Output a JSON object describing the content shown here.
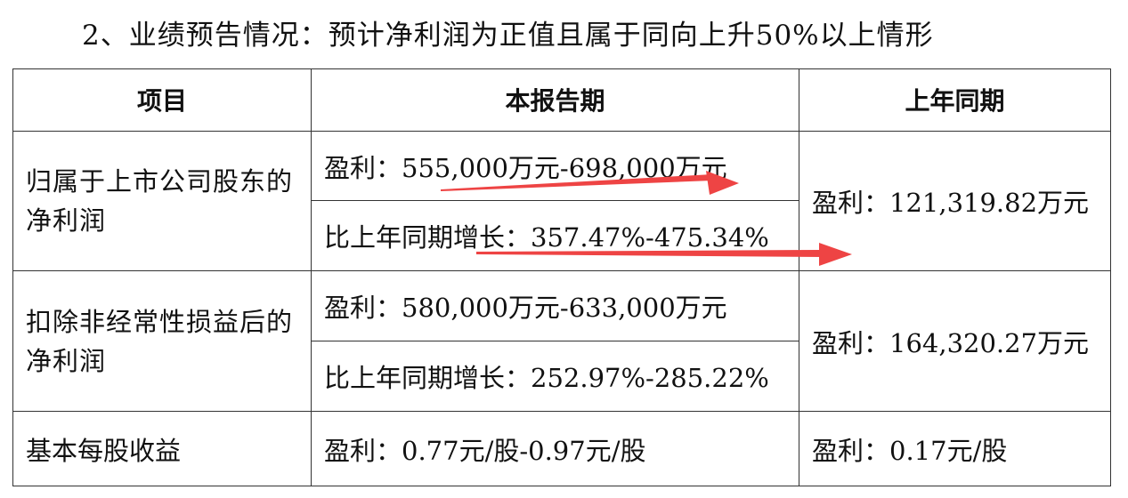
{
  "heading": "2、业绩预告情况：预计净利润为正值且属于同向上升50%以上情形",
  "table": {
    "headers": [
      "项目",
      "本报告期",
      "上年同期"
    ],
    "rows": [
      {
        "item": "归属于上市公司股东的净利润",
        "current": [
          "盈利：555,000万元-698,000万元",
          "比上年同期增长：357.47%-475.34%"
        ],
        "prior": "盈利：121,319.82万元"
      },
      {
        "item": "扣除非经常性损益后的净利润",
        "current": [
          "盈利：580,000万元-633,000万元",
          "比上年同期增长：252.97%-285.22%"
        ],
        "prior": "盈利：164,320.27万元"
      },
      {
        "item": "基本每股收益",
        "current": [
          "盈利：0.77元/股-0.97元/股"
        ],
        "prior": "盈利：0.17元/股"
      }
    ]
  },
  "annotation": {
    "arrow_color": "#ee4444"
  }
}
